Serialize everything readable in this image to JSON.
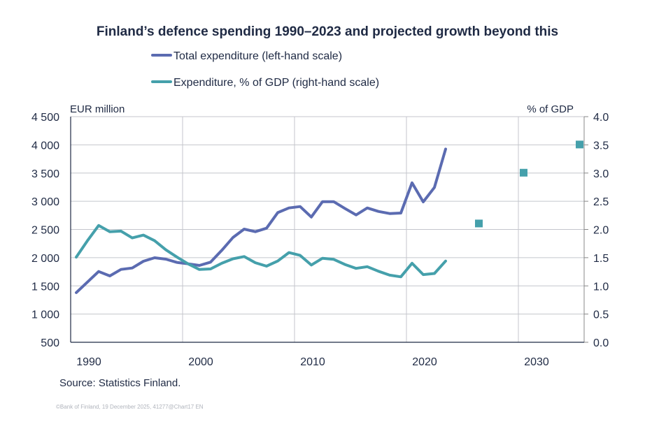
{
  "chart_data": {
    "type": "line",
    "title": "Finland’s defence spending 1990–2023 and projected growth beyond this",
    "left_axis_label": "EUR million",
    "right_axis_label": "% of GDP",
    "left_ylim": [
      500,
      4500
    ],
    "left_ticks": [
      "500",
      "1 000",
      "1 500",
      "2 000",
      "2 500",
      "3 000",
      "3 500",
      "4 000",
      "4 500"
    ],
    "right_ylim": [
      0,
      4
    ],
    "right_ticks": [
      "0.0",
      "0.5",
      "1.0",
      "1.5",
      "2.0",
      "2.5",
      "3.0",
      "3.5",
      "4.0"
    ],
    "x_range": [
      1990,
      2035
    ],
    "x_ticks": [
      "1990",
      "2000",
      "2010",
      "2020",
      "2030"
    ],
    "grid": true,
    "legend_position": "top",
    "series": [
      {
        "name": "Total expenditure (left-hand scale)",
        "axis": "left",
        "color": "#5b6bb1",
        "x": [
          1990,
          1991,
          1992,
          1993,
          1994,
          1995,
          1996,
          1997,
          1998,
          1999,
          2000,
          2001,
          2002,
          2003,
          2004,
          2005,
          2006,
          2007,
          2008,
          2009,
          2010,
          2011,
          2012,
          2013,
          2014,
          2015,
          2016,
          2017,
          2018,
          2019,
          2020,
          2021,
          2022,
          2023
        ],
        "values": [
          1380,
          1567,
          1754,
          1676,
          1792,
          1817,
          1936,
          1998,
          1974,
          1916,
          1891,
          1862,
          1920,
          2130,
          2357,
          2506,
          2460,
          2522,
          2799,
          2881,
          2906,
          2720,
          2993,
          2993,
          2873,
          2757,
          2881,
          2819,
          2782,
          2791,
          3327,
          2989,
          3245,
          3926
        ]
      },
      {
        "name": "Expenditure, % of GDP (right-hand scale)",
        "axis": "right",
        "color": "#45a0ab",
        "x": [
          1990,
          1991,
          1992,
          1993,
          1994,
          1995,
          1996,
          1997,
          1998,
          1999,
          2000,
          2001,
          2002,
          2003,
          2004,
          2005,
          2006,
          2007,
          2008,
          2009,
          2010,
          2011,
          2012,
          2013,
          2014,
          2015,
          2016,
          2017,
          2018,
          2019,
          2020,
          2021,
          2022,
          2023
        ],
        "values": [
          1.51,
          1.8,
          2.07,
          1.96,
          1.97,
          1.85,
          1.9,
          1.8,
          1.64,
          1.51,
          1.39,
          1.29,
          1.3,
          1.4,
          1.48,
          1.52,
          1.41,
          1.35,
          1.44,
          1.59,
          1.54,
          1.37,
          1.49,
          1.47,
          1.38,
          1.31,
          1.34,
          1.26,
          1.19,
          1.16,
          1.4,
          1.2,
          1.22,
          1.44
        ]
      },
      {
        "axis": "right",
        "type": "scatter",
        "marker": "square",
        "color": "#45a0ab",
        "x": [
          2026,
          2030,
          2035
        ],
        "values": [
          2.1,
          3.0,
          3.5
        ]
      }
    ]
  },
  "source": "Source: Statistics Finland.",
  "footer": "©Bank of Finland, 19 December 2025, 41277@Chart17  EN",
  "colors": {
    "text": "#1f2a44",
    "grid": "#c4c6cc",
    "axis": "#1f2a44"
  }
}
